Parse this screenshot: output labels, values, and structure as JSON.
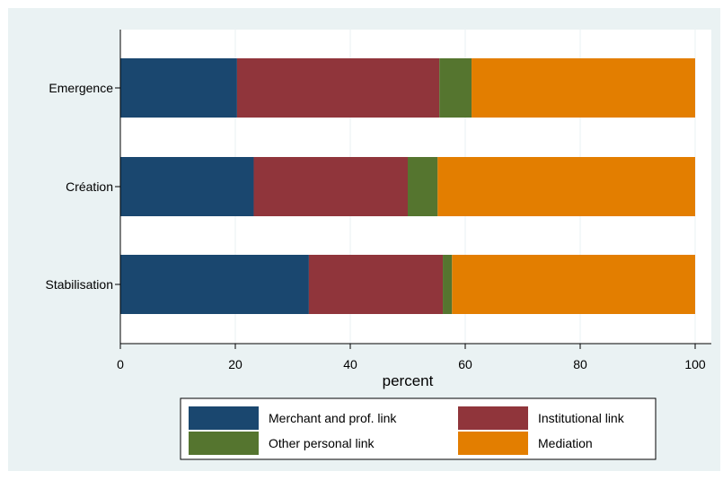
{
  "chart_data": {
    "type": "bar",
    "orientation": "horizontal",
    "stacked": true,
    "categories": [
      "Emergence",
      "Création",
      "Stabilisation"
    ],
    "series": [
      {
        "name": "Merchant and prof. link",
        "color": "#1a476f",
        "values": [
          20.3,
          23.2,
          32.8
        ]
      },
      {
        "name": "Institutional link",
        "color": "#90353b",
        "values": [
          35.2,
          26.8,
          23.3
        ]
      },
      {
        "name": "Other personal link",
        "color": "#55752f",
        "values": [
          5.6,
          5.2,
          1.6
        ]
      },
      {
        "name": "Mediation",
        "color": "#e37e00",
        "values": [
          38.9,
          44.8,
          42.3
        ]
      }
    ],
    "xlabel": "percent",
    "ylabel": "",
    "xlim": [
      0,
      100
    ],
    "xticks": [
      "0",
      "20",
      "40",
      "60",
      "80",
      "100"
    ],
    "grid": true,
    "legend_position": "bottom",
    "background_color": "#eaf2f3",
    "plot_background_color": "#ffffff",
    "grid_color": "#eaf2f3"
  }
}
